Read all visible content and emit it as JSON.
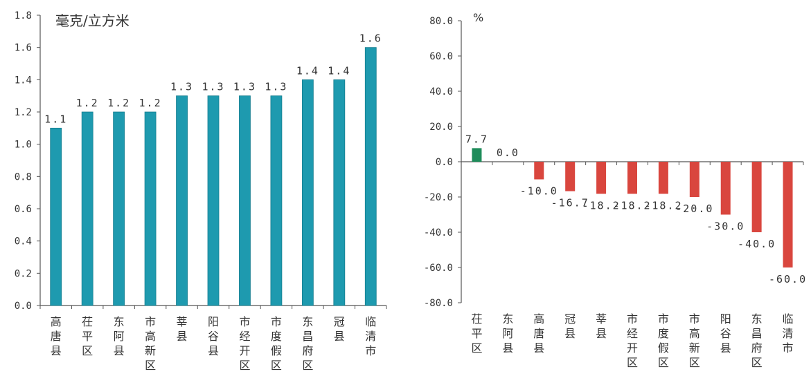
{
  "chart_data": [
    {
      "type": "bar",
      "unit_label": "毫克/立方米",
      "categories": [
        "高唐县",
        "茌平区",
        "东阿县",
        "市高新区",
        "莘县",
        "阳谷县",
        "市经开区",
        "市度假区",
        "东昌府区",
        "冠县",
        "临清市"
      ],
      "values": [
        1.1,
        1.2,
        1.2,
        1.2,
        1.3,
        1.3,
        1.3,
        1.3,
        1.4,
        1.4,
        1.6
      ],
      "value_labels": [
        "1.1",
        "1.2",
        "1.2",
        "1.2",
        "1.3",
        "1.3",
        "1.3",
        "1.3",
        "1.4",
        "1.4",
        "1.6"
      ],
      "ylim": [
        0,
        1.8
      ],
      "y_ticks": [
        "0.0",
        "0.2",
        "0.4",
        "0.6",
        "0.8",
        "1.0",
        "1.2",
        "1.4",
        "1.6",
        "1.8"
      ],
      "colors": {
        "bar": "#1e9aaf"
      }
    },
    {
      "type": "bar",
      "unit_label": "%",
      "categories": [
        "茌平区",
        "东阿县",
        "高唐县",
        "冠县",
        "莘县",
        "市经开区",
        "市度假区",
        "市高新区",
        "阳谷县",
        "东昌府区",
        "临清市"
      ],
      "values": [
        7.7,
        0.0,
        -10.0,
        -16.7,
        -18.2,
        -18.2,
        -18.2,
        -20.0,
        -30.0,
        -40.0,
        -60.0
      ],
      "value_labels": [
        "7.7",
        "0.0",
        "-10.0",
        "-16.7",
        "-18.2",
        "-18.2",
        "-18.2",
        "-20.0",
        "-30.0",
        "-40.0",
        "-60.0"
      ],
      "ylim": [
        -80,
        80
      ],
      "y_ticks": [
        "-80.0",
        "-60.0",
        "-40.0",
        "-20.0",
        "0.0",
        "20.0",
        "40.0",
        "60.0",
        "80.0"
      ],
      "colors": {
        "positive": "#1e8c5a",
        "negative": "#d9463e"
      }
    }
  ]
}
